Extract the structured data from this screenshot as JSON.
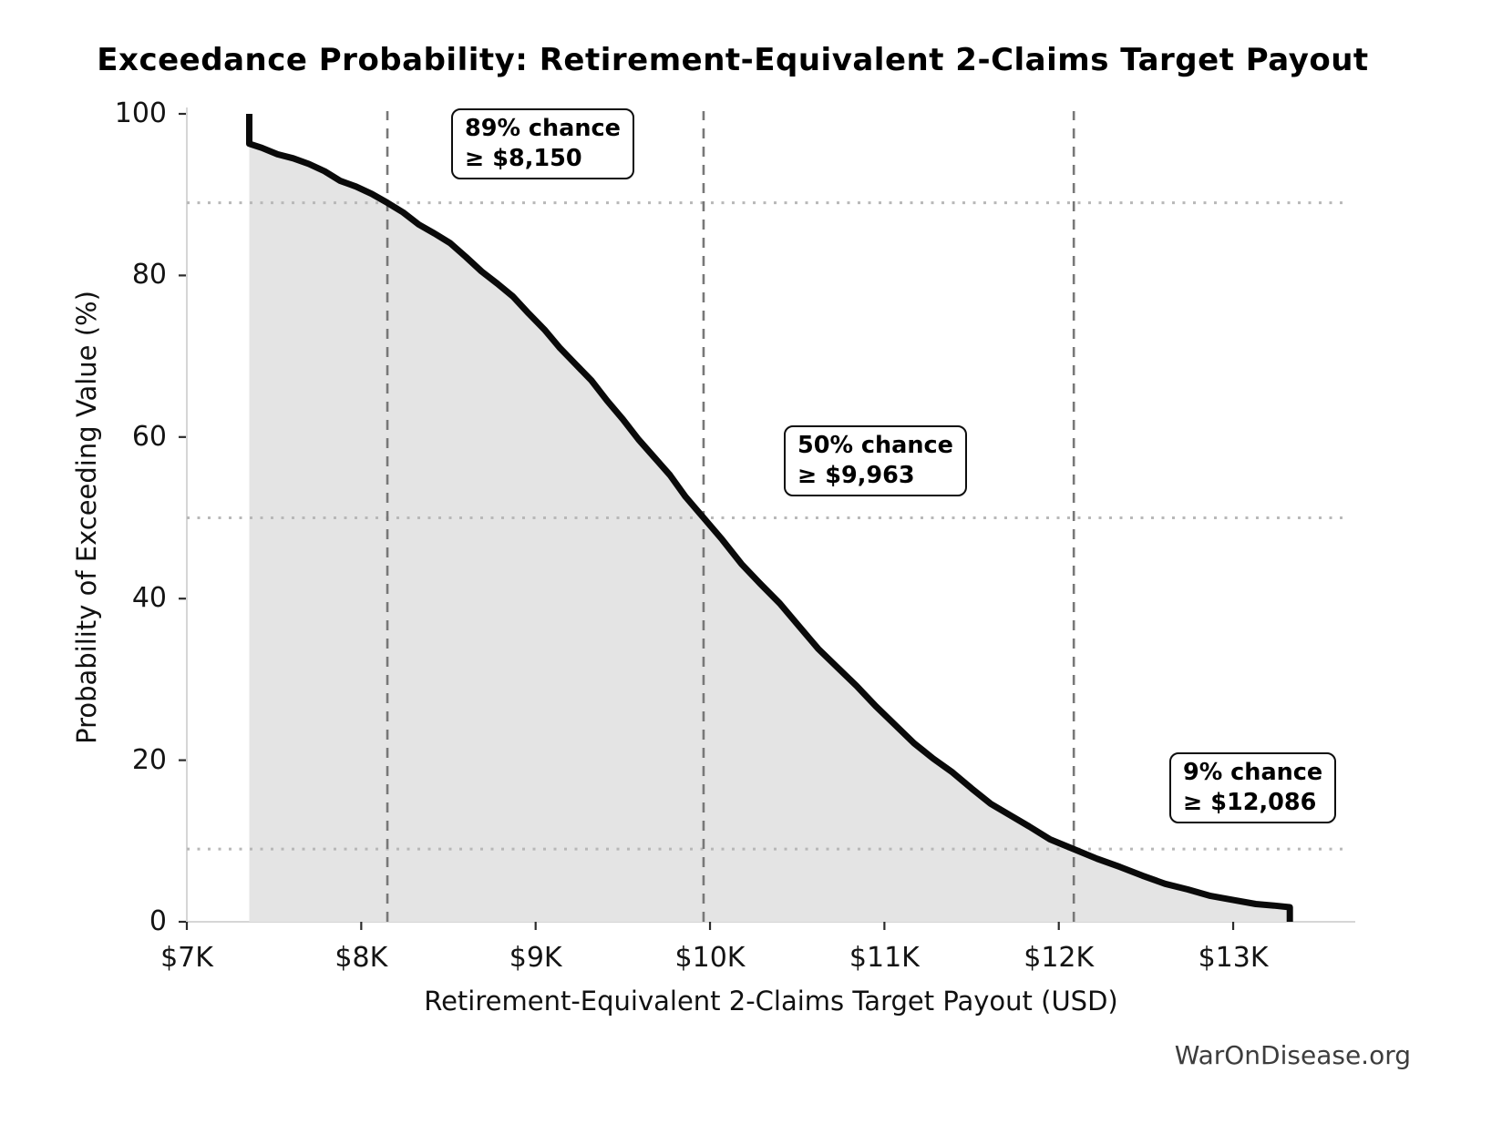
{
  "figure": {
    "watermark": "WarOnDisease.org"
  },
  "chart_data": {
    "type": "line",
    "title": "Exceedance Probability: Retirement-Equivalent 2-Claims Target Payout",
    "xlabel": "Retirement-Equivalent 2-Claims Target Payout (USD)",
    "ylabel": "Probability of Exceeding Value (%)",
    "xlim": [
      7000,
      13700
    ],
    "ylim": [
      0,
      100
    ],
    "legend": "none",
    "grid": "dotted horizontal lines at annotated probabilities; dashed vertical lines at annotated payouts",
    "x_ticks": [
      {
        "value": 7000,
        "label": "$7K"
      },
      {
        "value": 8000,
        "label": "$8K"
      },
      {
        "value": 9000,
        "label": "$9K"
      },
      {
        "value": 10000,
        "label": "$10K"
      },
      {
        "value": 11000,
        "label": "$11K"
      },
      {
        "value": 12000,
        "label": "$12K"
      },
      {
        "value": 13000,
        "label": "$13K"
      }
    ],
    "y_ticks": [
      {
        "value": 0,
        "label": "0"
      },
      {
        "value": 20,
        "label": "20"
      },
      {
        "value": 40,
        "label": "40"
      },
      {
        "value": 60,
        "label": "60"
      },
      {
        "value": 80,
        "label": "80"
      },
      {
        "value": 100,
        "label": "100"
      }
    ],
    "series": [
      {
        "name": "exceedance-probability-curve",
        "points": [
          [
            7358,
            100
          ],
          [
            7358,
            96.3
          ],
          [
            7430,
            95.8
          ],
          [
            7520,
            95.0
          ],
          [
            7610,
            94.5
          ],
          [
            7700,
            93.8
          ],
          [
            7790,
            92.9
          ],
          [
            7880,
            91.7
          ],
          [
            7970,
            91.0
          ],
          [
            8060,
            90.1
          ],
          [
            8150,
            89.0
          ],
          [
            8240,
            87.8
          ],
          [
            8330,
            86.3
          ],
          [
            8420,
            85.2
          ],
          [
            8510,
            84.0
          ],
          [
            8600,
            82.3
          ],
          [
            8690,
            80.5
          ],
          [
            8780,
            79.0
          ],
          [
            8870,
            77.4
          ],
          [
            8960,
            75.3
          ],
          [
            9050,
            73.3
          ],
          [
            9140,
            71.0
          ],
          [
            9230,
            69.0
          ],
          [
            9320,
            67.0
          ],
          [
            9410,
            64.5
          ],
          [
            9500,
            62.2
          ],
          [
            9590,
            59.7
          ],
          [
            9680,
            57.5
          ],
          [
            9770,
            55.3
          ],
          [
            9860,
            52.6
          ],
          [
            9963,
            50.0
          ],
          [
            10070,
            47.3
          ],
          [
            10180,
            44.3
          ],
          [
            10290,
            41.8
          ],
          [
            10400,
            39.4
          ],
          [
            10510,
            36.6
          ],
          [
            10620,
            33.8
          ],
          [
            10730,
            31.5
          ],
          [
            10840,
            29.2
          ],
          [
            10950,
            26.7
          ],
          [
            11060,
            24.4
          ],
          [
            11170,
            22.1
          ],
          [
            11280,
            20.2
          ],
          [
            11390,
            18.5
          ],
          [
            11500,
            16.5
          ],
          [
            11610,
            14.6
          ],
          [
            11720,
            13.2
          ],
          [
            11830,
            11.8
          ],
          [
            11950,
            10.2
          ],
          [
            12086,
            9.0
          ],
          [
            12220,
            7.8
          ],
          [
            12350,
            6.8
          ],
          [
            12480,
            5.7
          ],
          [
            12610,
            4.7
          ],
          [
            12740,
            4.0
          ],
          [
            12870,
            3.2
          ],
          [
            13000,
            2.7
          ],
          [
            13130,
            2.2
          ],
          [
            13240,
            2.0
          ],
          [
            13325,
            1.8
          ],
          [
            13325,
            0
          ]
        ]
      }
    ],
    "reference_lines": [
      {
        "probability_pct": 89,
        "value_usd": 8150,
        "label": [
          "89% chance",
          "≥ $8,150"
        ]
      },
      {
        "probability_pct": 50,
        "value_usd": 9963,
        "label": [
          "50% chance",
          "≥ $9,963"
        ]
      },
      {
        "probability_pct": 9,
        "value_usd": 12086,
        "label": [
          "9% chance",
          "≥ $12,086"
        ]
      }
    ],
    "colors": {
      "curve": "#0a0a0a",
      "fill": "#e4e4e4",
      "dashed_line": "#787878",
      "dotted_line": "#b8b8b8",
      "spine": "#d6d6d6",
      "tick": "#2b2b2b",
      "text": "#111111",
      "watermark": "#3d3d3d"
    }
  }
}
